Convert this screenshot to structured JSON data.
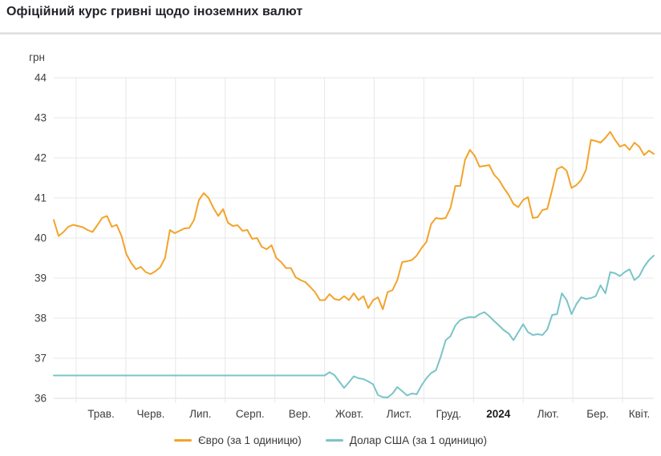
{
  "header": {
    "title": "Офіційний курс гривні щодо іноземних валют"
  },
  "colors": {
    "euro_line": "#f3a32a",
    "usd_line": "#7ac4c8",
    "gridline": "#e7e7e7",
    "axis_bottom_line": "#dcdcdc",
    "axis_text": "#3e3e3e",
    "bold_year_text": "#1c1c1c"
  },
  "chart_data": {
    "type": "line",
    "title": "Офіційний курс гривні щодо іноземних валют",
    "y_unit": "грн",
    "ylabel": "грн",
    "xlabel": "",
    "ylim": [
      36,
      44
    ],
    "y_ticks": [
      44,
      43,
      42,
      41,
      40,
      39,
      38,
      37,
      36
    ],
    "x_tick_labels": [
      "Трав.",
      "Черв.",
      "Лип.",
      "Серп.",
      "Вер.",
      "Жовт.",
      "Лист.",
      "Груд.",
      "2024",
      "Лют.",
      "Бер.",
      "Квіт."
    ],
    "bold_x_tick": "2024",
    "grid": true,
    "legend_position": "bottom",
    "series": [
      {
        "name": "Євро (за 1 одиницю)",
        "color": "#f3a32a",
        "values": [
          40.45,
          40.05,
          40.15,
          40.28,
          40.33,
          40.3,
          40.27,
          40.2,
          40.15,
          40.32,
          40.5,
          40.55,
          40.28,
          40.33,
          40.05,
          39.6,
          39.38,
          39.22,
          39.28,
          39.15,
          39.1,
          39.17,
          39.27,
          39.5,
          40.2,
          40.12,
          40.18,
          40.24,
          40.25,
          40.45,
          40.95,
          41.12,
          41.0,
          40.75,
          40.55,
          40.72,
          40.38,
          40.3,
          40.32,
          40.18,
          40.2,
          39.98,
          40.0,
          39.78,
          39.72,
          39.82,
          39.5,
          39.4,
          39.25,
          39.25,
          39.02,
          38.95,
          38.9,
          38.78,
          38.65,
          38.45,
          38.45,
          38.6,
          38.48,
          38.45,
          38.55,
          38.45,
          38.62,
          38.45,
          38.55,
          38.25,
          38.45,
          38.52,
          38.22,
          38.65,
          38.7,
          38.95,
          39.4,
          39.42,
          39.45,
          39.56,
          39.75,
          39.9,
          40.35,
          40.5,
          40.48,
          40.5,
          40.75,
          41.3,
          41.3,
          41.95,
          42.2,
          42.05,
          41.78,
          41.8,
          41.82,
          41.58,
          41.45,
          41.25,
          41.08,
          40.85,
          40.77,
          40.95,
          41.02,
          40.5,
          40.52,
          40.7,
          40.73,
          41.2,
          41.72,
          41.78,
          41.68,
          41.25,
          41.32,
          41.45,
          41.7,
          42.45,
          42.42,
          42.38,
          42.5,
          42.65,
          42.45,
          42.28,
          42.33,
          42.2,
          42.38,
          42.28,
          42.07,
          42.18,
          42.1
        ]
      },
      {
        "name": "Долар США (за 1 одиницю)",
        "color": "#7ac4c8",
        "values": [
          36.57,
          36.57,
          36.57,
          36.57,
          36.57,
          36.57,
          36.57,
          36.57,
          36.57,
          36.57,
          36.57,
          36.57,
          36.57,
          36.57,
          36.57,
          36.57,
          36.57,
          36.57,
          36.57,
          36.57,
          36.57,
          36.57,
          36.57,
          36.57,
          36.57,
          36.57,
          36.57,
          36.57,
          36.57,
          36.57,
          36.57,
          36.57,
          36.57,
          36.57,
          36.57,
          36.57,
          36.57,
          36.57,
          36.57,
          36.57,
          36.57,
          36.57,
          36.57,
          36.57,
          36.57,
          36.57,
          36.57,
          36.57,
          36.57,
          36.57,
          36.57,
          36.57,
          36.57,
          36.57,
          36.57,
          36.57,
          36.57,
          36.65,
          36.58,
          36.42,
          36.26,
          36.4,
          36.55,
          36.5,
          36.48,
          36.42,
          36.35,
          36.08,
          36.03,
          36.02,
          36.12,
          36.28,
          36.18,
          36.07,
          36.12,
          36.1,
          36.32,
          36.5,
          36.63,
          36.7,
          37.05,
          37.45,
          37.55,
          37.82,
          37.95,
          38.0,
          38.03,
          38.02,
          38.1,
          38.15,
          38.05,
          37.93,
          37.82,
          37.7,
          37.62,
          37.45,
          37.65,
          37.85,
          37.65,
          37.58,
          37.6,
          37.58,
          37.72,
          38.08,
          38.1,
          38.62,
          38.45,
          38.1,
          38.35,
          38.52,
          38.48,
          38.5,
          38.55,
          38.82,
          38.62,
          39.15,
          39.12,
          39.05,
          39.15,
          39.22,
          38.95,
          39.05,
          39.28,
          39.45,
          39.56
        ]
      }
    ]
  }
}
